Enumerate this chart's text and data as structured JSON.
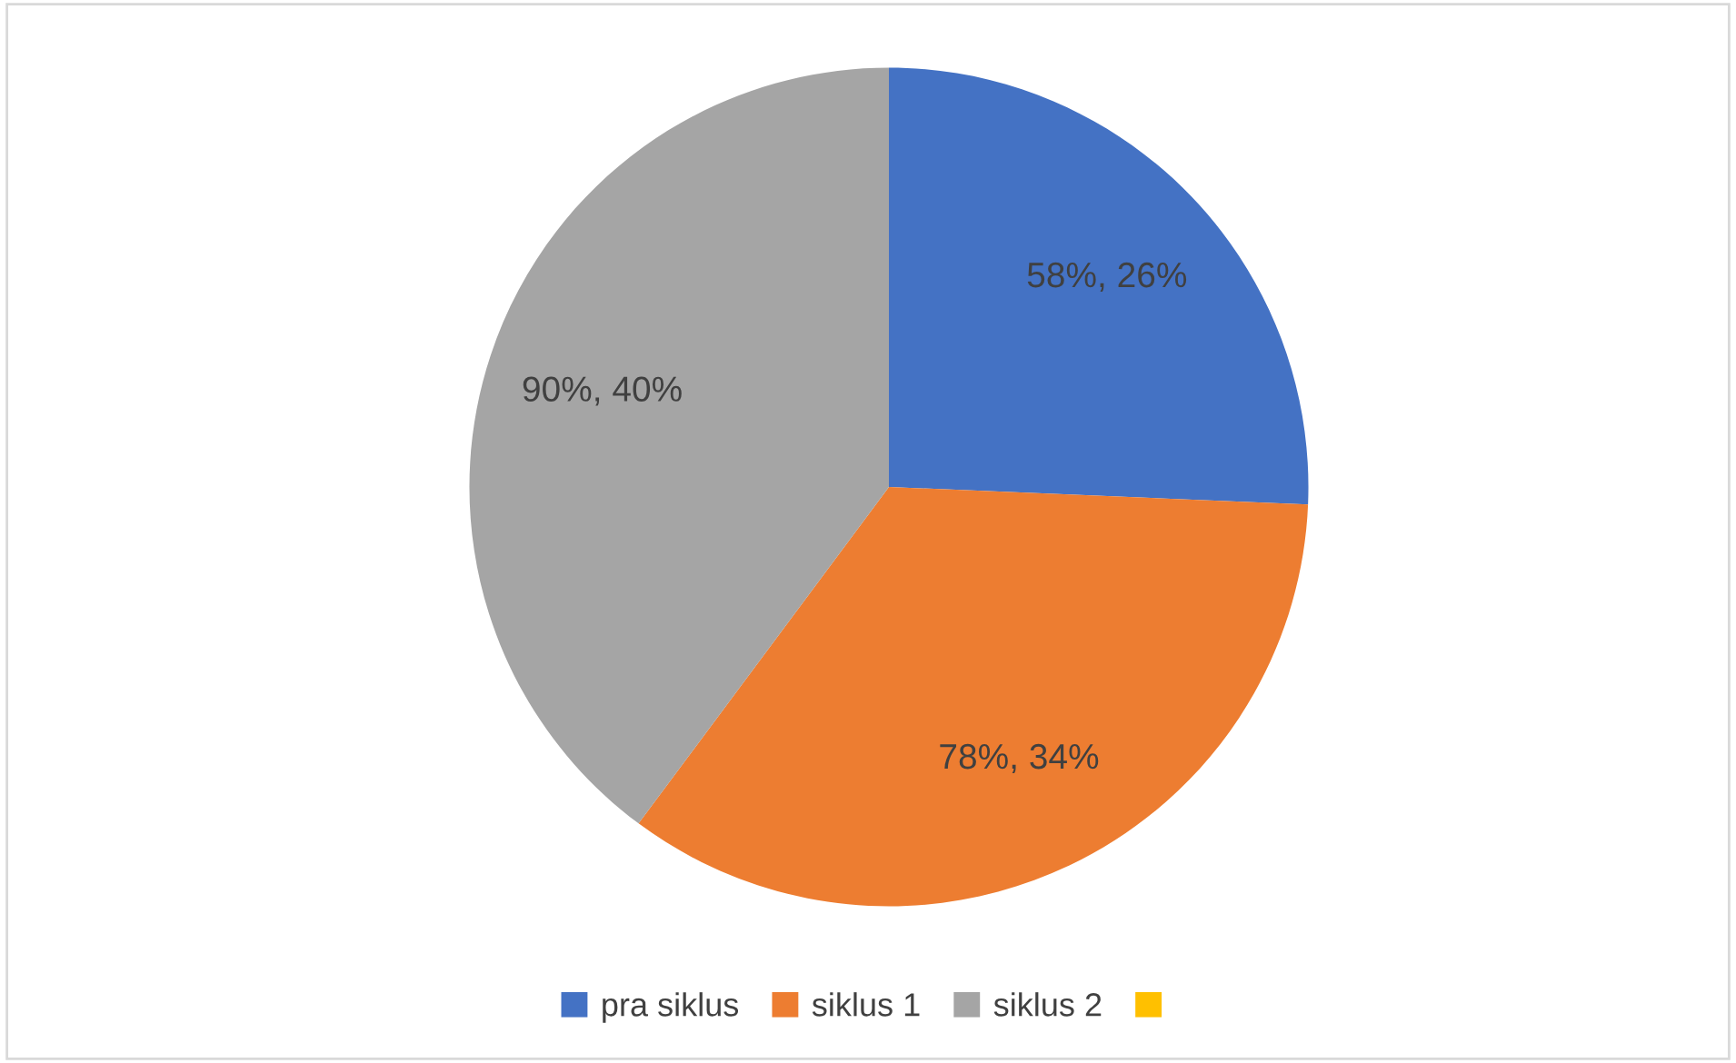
{
  "chart_data": {
    "type": "pie",
    "categories": [
      "pra siklus",
      "siklus 1",
      "siklus 2",
      null
    ],
    "values": [
      58,
      78,
      90,
      0
    ],
    "colors": [
      "#4472c4",
      "#ed7d31",
      "#a5a5a5",
      "#ffc000"
    ],
    "value_labels": [
      "58%, 26%",
      "78%, 34%",
      "90%, 40%",
      null
    ],
    "legend": "bottom"
  }
}
